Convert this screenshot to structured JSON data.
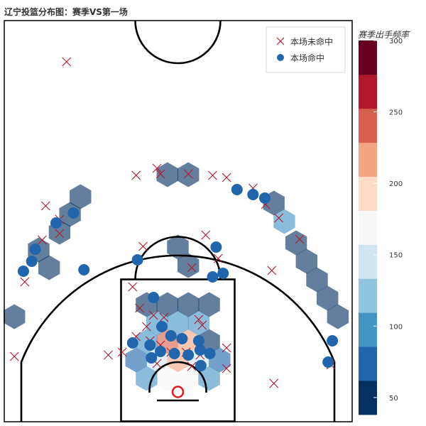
{
  "title": "辽宁投篮分布图：赛季VS第一场",
  "legend": {
    "miss_label": "本场未命中",
    "make_label": "本场命中"
  },
  "colorbar": {
    "title": "赛季出手频率",
    "ticks": [
      50,
      100,
      150,
      200,
      250,
      300
    ],
    "range": [
      38,
      300
    ],
    "colors": [
      "#053061",
      "#2166ac",
      "#4393c3",
      "#92c5de",
      "#d1e5f0",
      "#f7f7f7",
      "#fddbc7",
      "#f4a582",
      "#d6604d",
      "#b2182b",
      "#67001f"
    ]
  },
  "colors": {
    "miss": "#b2182b",
    "make": "#2166ac",
    "hex": "#6f86a8",
    "court_line": "#000000",
    "rim": "#e8181a"
  },
  "chart_data": {
    "type": "scatter",
    "title": "辽宁投篮分布图：赛季VS第一场",
    "xlabel": "",
    "ylabel": "",
    "grid": false,
    "legend_position": "top-right",
    "xlim": [
      -25,
      25
    ],
    "ylim": [
      -4.2,
      47
    ],
    "hexbin": {
      "name": "赛季出手频率",
      "bins": [
        {
          "x": -1.5,
          "y": 7.1,
          "v": 245
        },
        {
          "x": 1.5,
          "y": 7.1,
          "v": 225
        },
        {
          "x": 0,
          "y": 4.5,
          "v": 215
        },
        {
          "x": -3,
          "y": 4.5,
          "v": 155
        },
        {
          "x": 3,
          "y": 4.5,
          "v": 150
        },
        {
          "x": -1.5,
          "y": 1.9,
          "v": 170
        },
        {
          "x": 1.5,
          "y": 1.9,
          "v": 160
        },
        {
          "x": -4.5,
          "y": 1.9,
          "v": 105
        },
        {
          "x": 4.5,
          "y": 1.9,
          "v": 100
        },
        {
          "x": -6,
          "y": 4.5,
          "v": 65
        },
        {
          "x": 6,
          "y": 4.5,
          "v": 65
        },
        {
          "x": -4.5,
          "y": 7.1,
          "v": 95
        },
        {
          "x": 4.5,
          "y": 7.1,
          "v": 60
        },
        {
          "x": -3,
          "y": 9.7,
          "v": 95
        },
        {
          "x": 0,
          "y": 9.7,
          "v": 100
        },
        {
          "x": 3,
          "y": 9.7,
          "v": 95
        },
        {
          "x": -4.5,
          "y": 12.3,
          "v": 60
        },
        {
          "x": -1.5,
          "y": 12.3,
          "v": 58
        },
        {
          "x": 1.5,
          "y": 12.3,
          "v": 60
        },
        {
          "x": 4.5,
          "y": 12.3,
          "v": 58
        },
        {
          "x": 0,
          "y": 20.4,
          "v": 60
        },
        {
          "x": 1.5,
          "y": 17.8,
          "v": 55
        },
        {
          "x": -1.5,
          "y": 30.6,
          "v": 55
        },
        {
          "x": 1.5,
          "y": 30.6,
          "v": 55
        },
        {
          "x": -14,
          "y": 27.5,
          "v": 55
        },
        {
          "x": -15.5,
          "y": 25,
          "v": 55
        },
        {
          "x": -17,
          "y": 22.5,
          "v": 55
        },
        {
          "x": -20,
          "y": 20,
          "v": 55
        },
        {
          "x": -18.5,
          "y": 17.5,
          "v": 55
        },
        {
          "x": 13.8,
          "y": 26.6,
          "v": 55
        },
        {
          "x": 15.3,
          "y": 24,
          "v": 90
        },
        {
          "x": 17,
          "y": 21,
          "v": 55
        },
        {
          "x": 18.5,
          "y": 18.4,
          "v": 55
        },
        {
          "x": 20,
          "y": 15.8,
          "v": 55
        },
        {
          "x": 21.5,
          "y": 13.2,
          "v": 55
        },
        {
          "x": 23,
          "y": 10.6,
          "v": 55
        },
        {
          "x": -23.5,
          "y": 10.6,
          "v": 55
        }
      ]
    },
    "series": [
      {
        "name": "本场未命中",
        "marker": "cross",
        "points": [
          {
            "x": -16,
            "y": 46.5
          },
          {
            "x": -3,
            "y": 31.5
          },
          {
            "x": -6,
            "y": 30.5
          },
          {
            "x": -2.5,
            "y": 30.7
          },
          {
            "x": 1.5,
            "y": 30.7
          },
          {
            "x": 5,
            "y": 30.5
          },
          {
            "x": 7,
            "y": 30.2
          },
          {
            "x": 10.8,
            "y": 28.7
          },
          {
            "x": 12.6,
            "y": 26.4
          },
          {
            "x": 14.5,
            "y": 24.5
          },
          {
            "x": -19,
            "y": 26.2
          },
          {
            "x": -17,
            "y": 24.3
          },
          {
            "x": -19.5,
            "y": 21.4
          },
          {
            "x": -17,
            "y": 22.3
          },
          {
            "x": 4,
            "y": 22.1
          },
          {
            "x": 17.5,
            "y": 21.5
          },
          {
            "x": -5,
            "y": 20.5
          },
          {
            "x": 5.8,
            "y": 18.8
          },
          {
            "x": 2,
            "y": 17.5
          },
          {
            "x": 13.5,
            "y": 17.1
          },
          {
            "x": -22,
            "y": 15.5
          },
          {
            "x": -6.5,
            "y": 14.8
          },
          {
            "x": -5.5,
            "y": 11.8
          },
          {
            "x": -4.5,
            "y": 9.2
          },
          {
            "x": -3.5,
            "y": 10.8
          },
          {
            "x": -2,
            "y": 10.5
          },
          {
            "x": 3,
            "y": 10.2
          },
          {
            "x": 3.5,
            "y": 9.4
          },
          {
            "x": -6,
            "y": 7.8
          },
          {
            "x": -4,
            "y": 7.2
          },
          {
            "x": -2.5,
            "y": 6.6
          },
          {
            "x": -1,
            "y": 5.6
          },
          {
            "x": 1.2,
            "y": 5.6
          },
          {
            "x": 3.2,
            "y": 5.2
          },
          {
            "x": 7,
            "y": 6.2
          },
          {
            "x": -10,
            "y": 5.2
          },
          {
            "x": -8,
            "y": 5.6
          },
          {
            "x": -3,
            "y": 4
          },
          {
            "x": 2,
            "y": 3.6
          },
          {
            "x": 7,
            "y": 3.3
          },
          {
            "x": 13.8,
            "y": 1.2
          },
          {
            "x": -23.5,
            "y": 5
          },
          {
            "x": 22,
            "y": 3.8
          }
        ]
      },
      {
        "name": "本场命中",
        "marker": "circle",
        "points": [
          {
            "x": 8.5,
            "y": 28.5
          },
          {
            "x": 10.8,
            "y": 27.8
          },
          {
            "x": 12.5,
            "y": 27.3
          },
          {
            "x": -15,
            "y": 25.2
          },
          {
            "x": -17.5,
            "y": 23.8
          },
          {
            "x": 5.5,
            "y": 20.4
          },
          {
            "x": -20.5,
            "y": 20.1
          },
          {
            "x": -21,
            "y": 18.4
          },
          {
            "x": -5.8,
            "y": 18.6
          },
          {
            "x": -13.5,
            "y": 17.2
          },
          {
            "x": -22.2,
            "y": 17
          },
          {
            "x": 6.5,
            "y": 16.7
          },
          {
            "x": 5,
            "y": 16.2
          },
          {
            "x": -3.5,
            "y": 13.3
          },
          {
            "x": -2.3,
            "y": 9.2
          },
          {
            "x": -1,
            "y": 7.9
          },
          {
            "x": 0.6,
            "y": 7.5
          },
          {
            "x": 3,
            "y": 7.2
          },
          {
            "x": -6.5,
            "y": 6.9
          },
          {
            "x": -4,
            "y": 6.6
          },
          {
            "x": -2.5,
            "y": 5.7
          },
          {
            "x": -0.5,
            "y": 5.4
          },
          {
            "x": 1.5,
            "y": 5.2
          },
          {
            "x": 3.2,
            "y": 5.9
          },
          {
            "x": 4.6,
            "y": 5.4
          },
          {
            "x": -3.8,
            "y": 4.8
          },
          {
            "x": 3.3,
            "y": 3.7
          },
          {
            "x": 22.2,
            "y": 7.2
          },
          {
            "x": 21.6,
            "y": 4.2
          }
        ]
      }
    ]
  }
}
